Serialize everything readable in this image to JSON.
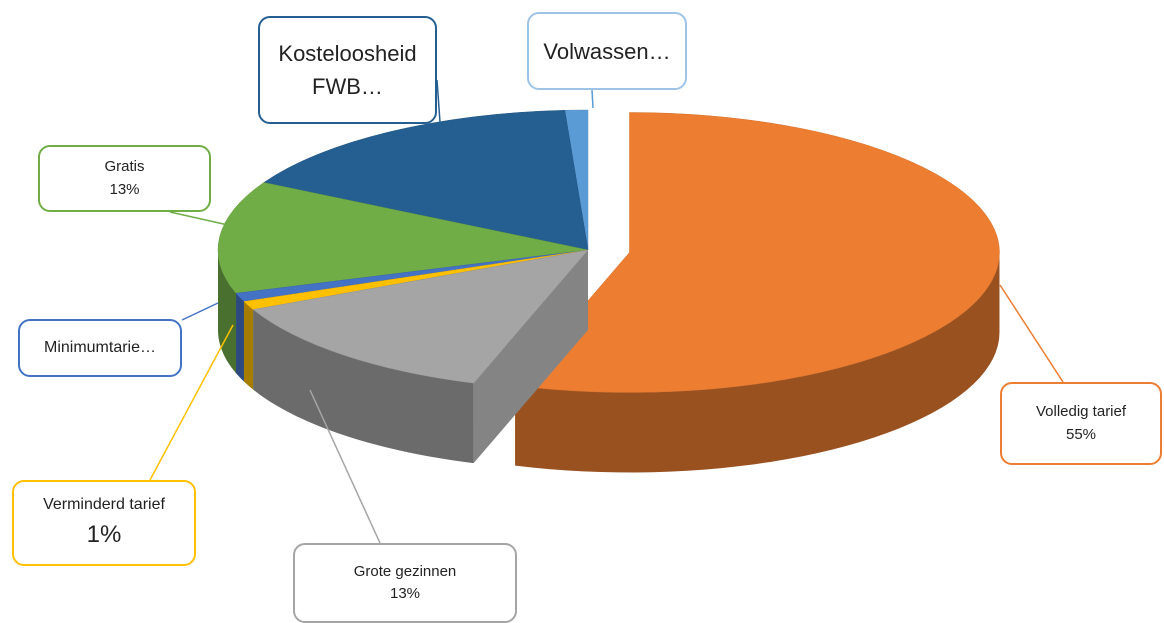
{
  "chart_data": {
    "type": "pie",
    "categories": [
      "Volledig tarief",
      "Grote gezinnen",
      "Verminderd tarief",
      "Minimumtarie…",
      "Gratis",
      "Kosteloosheid FWB…",
      "Volwassen…"
    ],
    "values": [
      55,
      13,
      1,
      1,
      13,
      16,
      1
    ],
    "value_labels": [
      "55%",
      "13%",
      "1%",
      null,
      "13%",
      null,
      null
    ],
    "colors": [
      "#ed7d31",
      "#a5a5a5",
      "#ffc000",
      "#4472c4",
      "#70ad47",
      "#255e91",
      "#5b9bd5"
    ]
  }
}
